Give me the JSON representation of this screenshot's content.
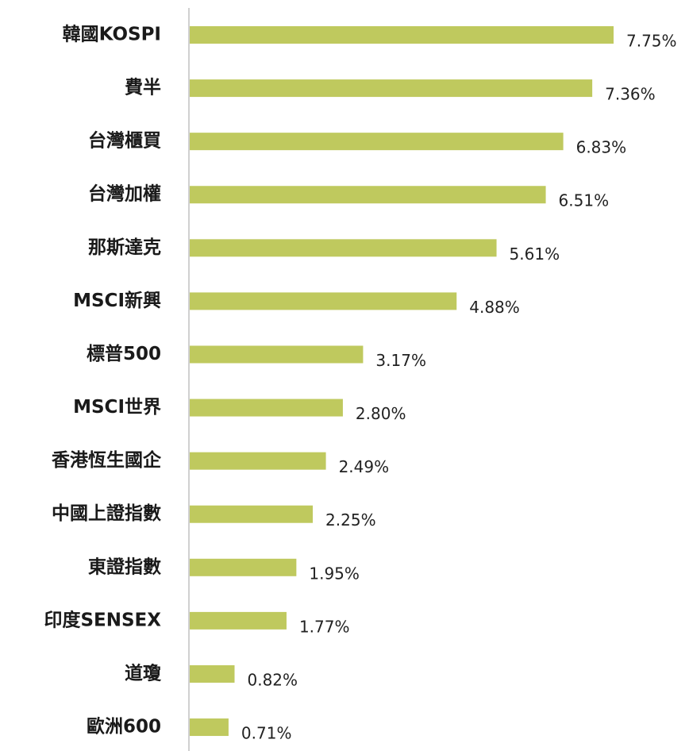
{
  "chart_data": {
    "type": "barh",
    "categories": [
      "韓國KOSPI",
      "費半",
      "台灣櫃買",
      "台灣加權",
      "那斯達克",
      "MSCI新興",
      "標普500",
      "MSCI世界",
      "香港恆生國企",
      "中國上證指數",
      "東證指數",
      "印度SENSEX",
      "道瓊",
      "歐洲600"
    ],
    "values": [
      7.75,
      7.36,
      6.83,
      6.51,
      5.61,
      4.88,
      3.17,
      2.8,
      2.49,
      2.25,
      1.95,
      1.77,
      0.82,
      0.71
    ],
    "value_labels": [
      "7.75%",
      "7.36%",
      "6.83%",
      "6.51%",
      "5.61%",
      "4.88%",
      "3.17%",
      "2.80%",
      "2.49%",
      "2.25%",
      "1.95%",
      "1.77%",
      "0.82%",
      "0.71%"
    ],
    "color": "#bfc95e"
  }
}
